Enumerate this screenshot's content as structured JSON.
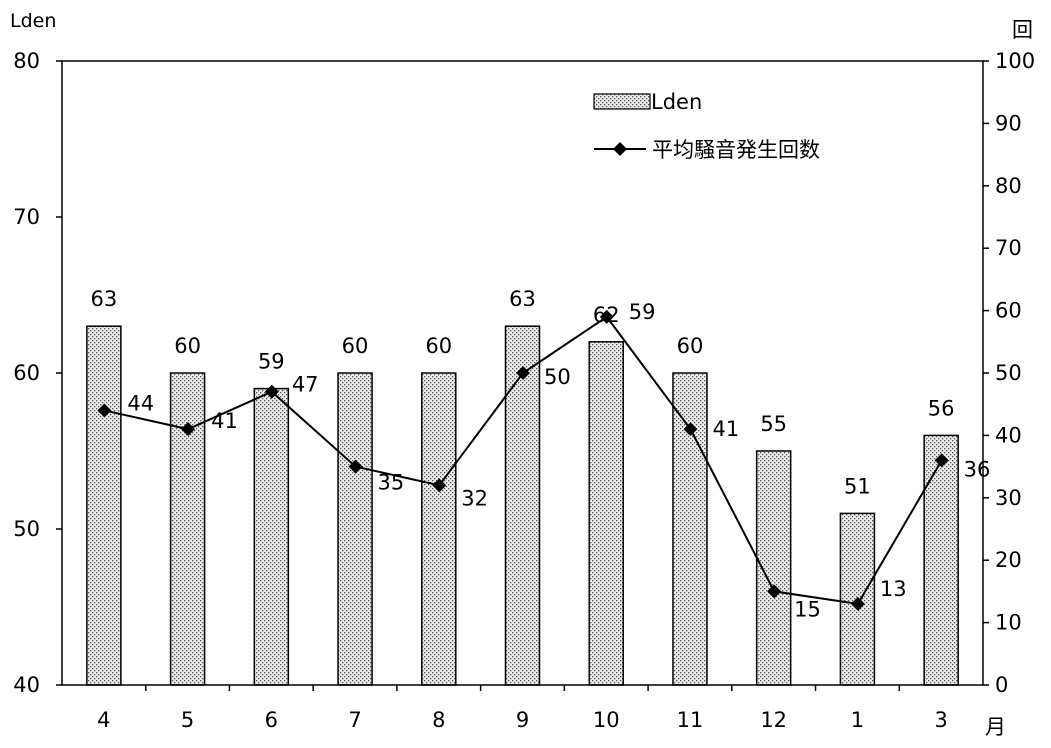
{
  "chart_data": {
    "type": "bar",
    "categories": [
      "4",
      "5",
      "6",
      "7",
      "8",
      "9",
      "10",
      "11",
      "12",
      "1",
      "3"
    ],
    "series": [
      {
        "name": "Lden",
        "kind": "bar",
        "axis": "left",
        "values": [
          63,
          60,
          59,
          60,
          60,
          63,
          62,
          60,
          55,
          51,
          56
        ]
      },
      {
        "name": "平均騒音発生回数",
        "kind": "line",
        "axis": "right",
        "marker": "diamond",
        "values": [
          44,
          41,
          47,
          35,
          32,
          50,
          59,
          41,
          15,
          13,
          36
        ]
      }
    ],
    "ylabel": "Lden",
    "ylabel_right": "回",
    "xlabel": "月",
    "ylim": [
      40,
      80
    ],
    "ylim_right": [
      0,
      100
    ],
    "yticks": [
      40,
      50,
      60,
      70,
      80
    ],
    "yticks_right": [
      0,
      10,
      20,
      30,
      40,
      50,
      60,
      70,
      80,
      90,
      100
    ],
    "grid": false,
    "legend_position": "top-right",
    "bar_fill": "dotted-gray",
    "line_color": "#000000"
  }
}
